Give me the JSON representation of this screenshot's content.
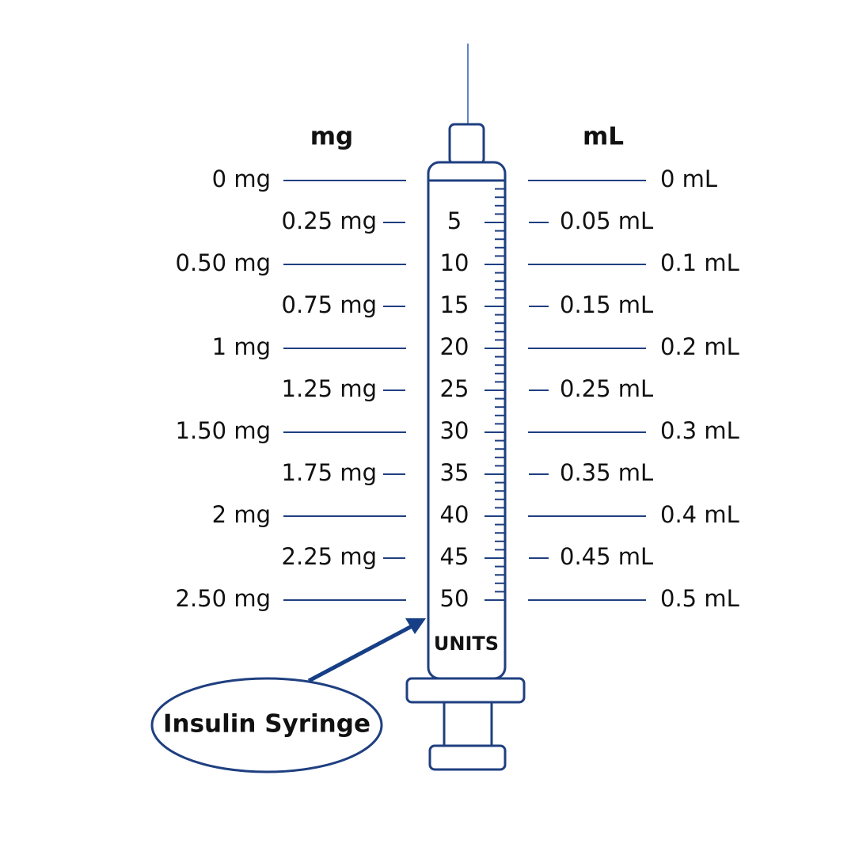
{
  "headers": {
    "mg": "mg",
    "ml": "mL"
  },
  "rows": [
    {
      "mg": "0 mg",
      "ml": "0 mL"
    },
    {
      "mg": "0.25 mg",
      "units": "5",
      "ml": "0.05 mL"
    },
    {
      "mg": "0.50 mg",
      "units": "10",
      "ml": "0.1 mL"
    },
    {
      "mg": "0.75 mg",
      "units": "15",
      "ml": "0.15 mL"
    },
    {
      "mg": "1 mg",
      "units": "20",
      "ml": "0.2 mL"
    },
    {
      "mg": "1.25 mg",
      "units": "25",
      "ml": "0.25 mL"
    },
    {
      "mg": "1.50 mg",
      "units": "30",
      "ml": "0.3 mL"
    },
    {
      "mg": "1.75 mg",
      "units": "35",
      "ml": "0.35 mL"
    },
    {
      "mg": "2 mg",
      "units": "40",
      "ml": "0.4 mL"
    },
    {
      "mg": "2.25 mg",
      "units": "45",
      "ml": "0.45 mL"
    },
    {
      "mg": "2.50 mg",
      "units": "50",
      "ml": "0.5 mL"
    }
  ],
  "barrel_label": "UNITS",
  "callout": "Insulin Syringe"
}
